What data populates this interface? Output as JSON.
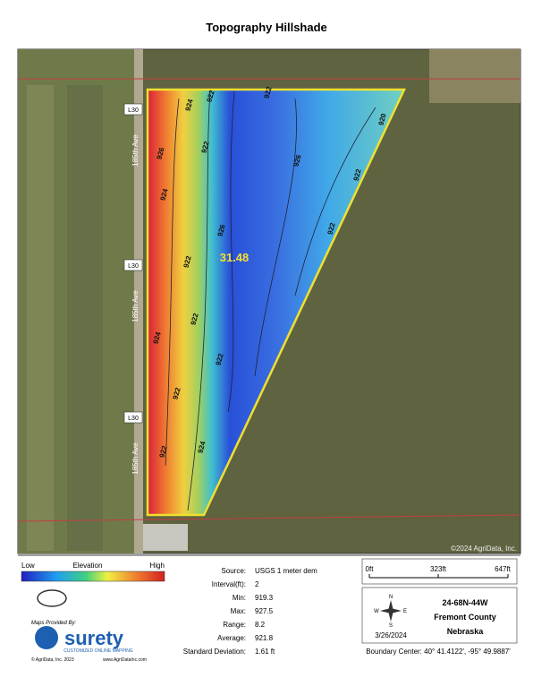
{
  "header": {
    "title": "Topography Hillshade"
  },
  "map": {
    "road_labels": [
      "L30",
      "L30",
      "L30"
    ],
    "street_labels": [
      "185th Ave",
      "185th Ave",
      "185th Ave"
    ],
    "contour_labels": [
      "922",
      "922",
      "924",
      "926",
      "924",
      "922",
      "926",
      "922",
      "922",
      "922",
      "924",
      "922",
      "926",
      "922",
      "924",
      "922",
      "922",
      "920"
    ],
    "acres": "31.48",
    "copyright": "©2024 AgriData, Inc."
  },
  "legend": {
    "low": "Low",
    "title": "Elevation",
    "high": "High"
  },
  "stats": [
    [
      "Source:",
      "USGS 1 meter dem"
    ],
    [
      "Interval(ft):",
      "2"
    ],
    [
      "Min:",
      "919.3"
    ],
    [
      "Max:",
      "927.5"
    ],
    [
      "Range:",
      "8.2"
    ],
    [
      "Average:",
      "921.8"
    ],
    [
      "Standard Deviation:",
      "1.61 ft"
    ]
  ],
  "scale": {
    "labels": [
      "0ft",
      "323ft",
      "647ft"
    ]
  },
  "compass": {
    "n": "N",
    "e": "E",
    "w": "W",
    "s": "S",
    "date": "3/26/2024"
  },
  "location": {
    "township": "24-68N-44W",
    "county": "Fremont County",
    "state": "Nebraska",
    "boundary_center": "Boundary Center: 40° 41.4122', -95° 49.9887'"
  },
  "branding": {
    "maps_by": "Maps Provided By:",
    "brand": "surety",
    "tagline": "CUSTOMIZED ONLINE MAPPING",
    "copyright": "© AgriData, Inc. 2023",
    "website": "www.AgriDataInc.com"
  }
}
